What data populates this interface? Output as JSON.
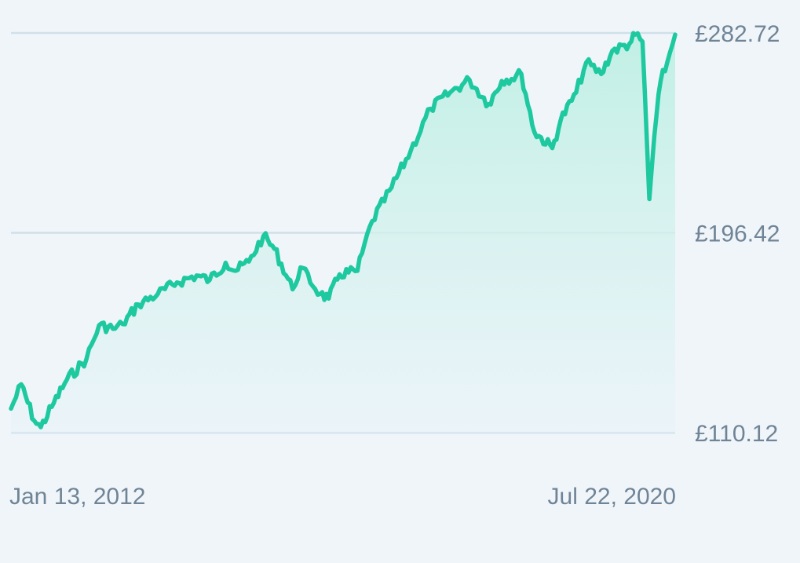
{
  "chart_data": {
    "type": "area",
    "title": "",
    "xlabel": "",
    "ylabel": "",
    "grid": true,
    "y_ticks": [
      "£110.12",
      "£196.42",
      "£282.72"
    ],
    "y_tick_values": [
      110.12,
      196.42,
      282.72
    ],
    "ylim": [
      110.12,
      282.72
    ],
    "x_tick_labels": [
      "Jan 13, 2012",
      "Jul 22, 2020"
    ],
    "xlim": [
      "2012-01-13",
      "2020-07-22"
    ],
    "colors": {
      "line": "#1ec9a0",
      "fill": "#c9f2e8",
      "grid": "#cfe0e8",
      "label": "#6f8496",
      "background": "#f0f5fa"
    },
    "series": [
      {
        "x": [
          "2012-01-13",
          "2012-03-01",
          "2012-05-01",
          "2012-06-01",
          "2012-08-01",
          "2012-10-01",
          "2013-01-01",
          "2013-03-01",
          "2013-05-15",
          "2013-06-20",
          "2013-09-01",
          "2013-12-01",
          "2014-03-01",
          "2014-06-01",
          "2014-08-01",
          "2014-10-15",
          "2014-12-01",
          "2015-02-01",
          "2015-04-10",
          "2015-06-01",
          "2015-08-25",
          "2015-10-01",
          "2016-01-01",
          "2016-02-10",
          "2016-04-01",
          "2016-06-24",
          "2016-07-15",
          "2016-09-01",
          "2016-12-01",
          "2017-03-01",
          "2017-06-01",
          "2017-09-01",
          "2017-12-01",
          "2018-03-01",
          "2018-05-01",
          "2018-08-01",
          "2018-10-01",
          "2018-12-24",
          "2019-02-01",
          "2019-04-15",
          "2019-06-01",
          "2019-08-10",
          "2019-10-01",
          "2019-12-20",
          "2020-01-17",
          "2020-02-20",
          "2020-03-23",
          "2020-04-15",
          "2020-05-15",
          "2020-06-15",
          "2020-07-22"
        ],
        "y": [
          120.5,
          131.0,
          115.3,
          112.5,
          123.0,
          133.0,
          142.0,
          156.5,
          155.0,
          157.0,
          165.5,
          170.0,
          175.0,
          178.0,
          176.0,
          183.5,
          180.0,
          184.0,
          195.0,
          189.5,
          172.0,
          181.5,
          170.0,
          168.0,
          178.5,
          180.0,
          187.5,
          201.5,
          216.0,
          232.0,
          250.0,
          257.0,
          262.5,
          252.0,
          262.0,
          265.0,
          240.0,
          233.0,
          245.0,
          257.0,
          270.0,
          265.0,
          275.0,
          278.0,
          282.0,
          279.0,
          211.0,
          238.0,
          262.0,
          270.0,
          282.0
        ]
      }
    ]
  }
}
